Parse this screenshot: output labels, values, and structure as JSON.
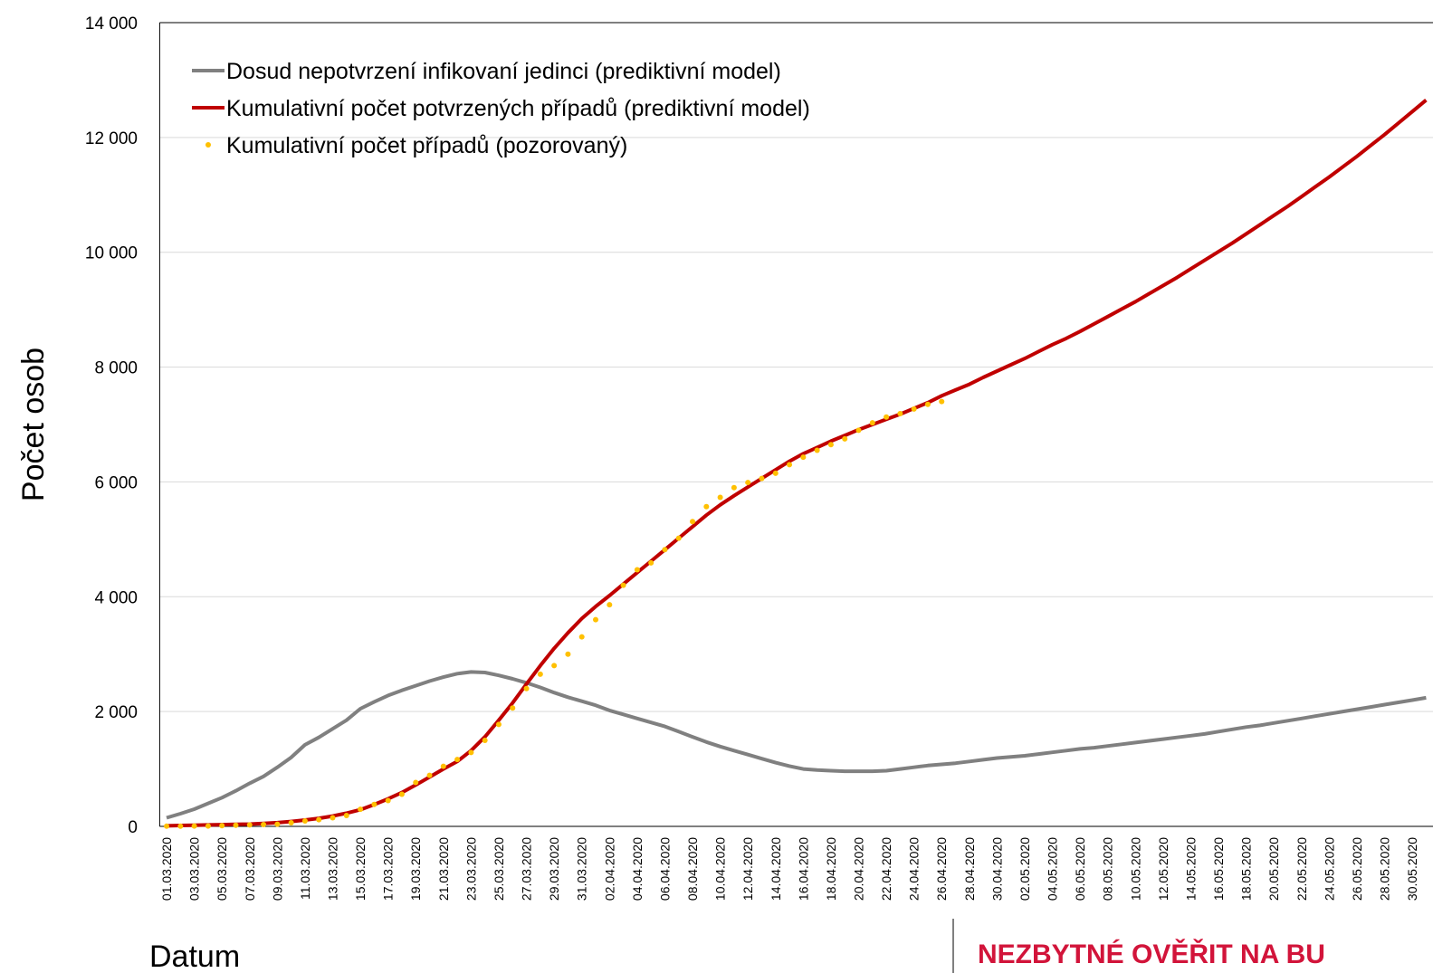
{
  "chart_data": {
    "type": "line",
    "ylabel": "Počet osob",
    "xlabel": "Datum",
    "annotation": "NEZBYTNÉ OVĚŘIT NA BU",
    "legend": "upper left",
    "grid": true,
    "ylim": [
      0,
      14000
    ],
    "yticks": [
      0,
      {
        "value": 2000,
        "label": "2 000"
      },
      {
        "value": 4000,
        "label": "4 000"
      },
      {
        "value": 6000,
        "label": "6 000"
      },
      {
        "value": 8000,
        "label": "8 000"
      },
      {
        "value": 10000,
        "label": "10 000"
      },
      {
        "value": 12000,
        "label": "12 000"
      },
      {
        "value": 14000,
        "label": "14 000"
      }
    ],
    "categories": [
      "01.03.2020",
      null,
      "03.03.2020",
      null,
      "05.03.2020",
      null,
      "07.03.2020",
      null,
      "09.03.2020",
      null,
      "11.03.2020",
      null,
      "13.03.2020",
      null,
      "15.03.2020",
      null,
      "17.03.2020",
      null,
      "19.03.2020",
      null,
      "21.03.2020",
      null,
      "23.03.2020",
      null,
      "25.03.2020",
      null,
      "27.03.2020",
      null,
      "29.03.2020",
      null,
      "31.03.2020",
      null,
      "02.04.2020",
      null,
      "04.04.2020",
      null,
      "06.04.2020",
      null,
      "08.04.2020",
      null,
      "10.04.2020",
      null,
      "12.04.2020",
      null,
      "14.04.2020",
      null,
      "16.04.2020",
      null,
      "18.04.2020",
      null,
      "20.04.2020",
      null,
      "22.04.2020",
      null,
      "24.04.2020",
      null,
      "26.04.2020",
      null,
      "28.04.2020",
      null,
      "30.04.2020",
      null,
      "02.05.2020",
      null,
      "04.05.2020",
      null,
      "06.05.2020",
      null,
      "08.05.2020",
      null,
      "10.05.2020",
      null,
      "12.05.2020",
      null,
      "14.05.2020",
      null,
      "16.05.2020",
      null,
      "18.05.2020",
      null,
      "20.05.2020",
      null,
      "22.05.2020",
      null,
      "24.05.2020",
      null,
      "26.05.2020",
      null,
      "28.05.2020",
      null,
      "30.05.2020",
      null
    ],
    "series": [
      {
        "name": "Dosud nepotvrzení infikovaní jedinci (prediktivní model)",
        "color": "#808080",
        "style": "line",
        "values": [
          150,
          220,
          300,
          400,
          500,
          620,
          750,
          870,
          1030,
          1200,
          1420,
          1550,
          1700,
          1850,
          2050,
          2170,
          2280,
          2370,
          2450,
          2530,
          2600,
          2660,
          2690,
          2680,
          2630,
          2570,
          2500,
          2420,
          2330,
          2250,
          2180,
          2110,
          2020,
          1950,
          1880,
          1810,
          1740,
          1650,
          1560,
          1470,
          1390,
          1320,
          1250,
          1180,
          1110,
          1050,
          1000,
          980,
          970,
          960,
          960,
          960,
          970,
          1000,
          1030,
          1060,
          1080,
          1100,
          1130,
          1160,
          1190,
          1210,
          1230,
          1260,
          1290,
          1320,
          1350,
          1370,
          1400,
          1430,
          1460,
          1490,
          1520,
          1550,
          1580,
          1610,
          1650,
          1690,
          1730,
          1760,
          1800,
          1840,
          1880,
          1920,
          1960,
          2000,
          2040,
          2080,
          2120,
          2160,
          2200,
          2240
        ]
      },
      {
        "name": "Kumulativní počet potvrzených případů (prediktivní model)",
        "color": "#c00000",
        "style": "line",
        "values": [
          10,
          15,
          20,
          25,
          30,
          35,
          40,
          50,
          65,
          85,
          110,
          140,
          180,
          230,
          290,
          380,
          480,
          590,
          720,
          860,
          1000,
          1130,
          1320,
          1560,
          1850,
          2150,
          2480,
          2800,
          3100,
          3370,
          3620,
          3830,
          4020,
          4220,
          4420,
          4620,
          4820,
          5020,
          5220,
          5420,
          5600,
          5760,
          5910,
          6060,
          6210,
          6360,
          6490,
          6600,
          6710,
          6810,
          6910,
          7000,
          7090,
          7180,
          7280,
          7380,
          7500,
          7600,
          7700,
          7820,
          7930,
          8040,
          8150,
          8270,
          8390,
          8500,
          8620,
          8750,
          8880,
          9010,
          9140,
          9280,
          9420,
          9560,
          9710,
          9860,
          10010,
          10160,
          10320,
          10480,
          10640,
          10800,
          10970,
          11140,
          11310,
          11490,
          11670,
          11860,
          12050,
          12250,
          12450,
          12650
        ]
      },
      {
        "name": "Kumulativní počet případů (pozorovaný)",
        "color": "#ffc000",
        "style": "dots",
        "values": [
          3,
          3,
          5,
          5,
          12,
          19,
          26,
          32,
          38,
          63,
          94,
          116,
          150,
          189,
          298,
          383,
          450,
          560,
          765,
          889,
          1047,
          1165,
          1287,
          1497,
          1775,
          2062,
          2400,
          2650,
          2800,
          3000,
          3300,
          3600,
          3860,
          4200,
          4470,
          4590,
          4820,
          5020,
          5310,
          5570,
          5730,
          5900,
          5990,
          6060,
          6150,
          6300,
          6430,
          6550,
          6650,
          6750,
          6900,
          7030,
          7130,
          7190,
          7270,
          7350,
          7400,
          null,
          null,
          null,
          null,
          null,
          null,
          null,
          null,
          null,
          null,
          null,
          null,
          null,
          null,
          null,
          null,
          null,
          null,
          null,
          null,
          null,
          null,
          null,
          null,
          null,
          null,
          null,
          null,
          null,
          null,
          null,
          null,
          null,
          null,
          null
        ]
      }
    ]
  }
}
